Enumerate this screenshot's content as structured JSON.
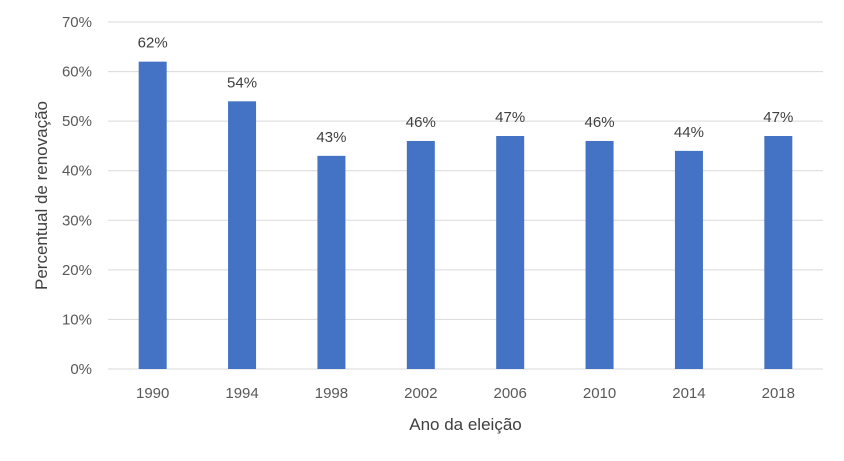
{
  "chart_data": {
    "type": "bar",
    "categories": [
      "1990",
      "1994",
      "1998",
      "2002",
      "2006",
      "2010",
      "2014",
      "2018"
    ],
    "values": [
      62,
      54,
      43,
      46,
      47,
      46,
      44,
      47
    ],
    "data_labels": [
      "62%",
      "54%",
      "43%",
      "46%",
      "47%",
      "46%",
      "44%",
      "47%"
    ],
    "xlabel": "Ano da eleição",
    "ylabel": "Percentual de renovação",
    "ylim": [
      0,
      70
    ],
    "yticks": [
      0,
      10,
      20,
      30,
      40,
      50,
      60,
      70
    ],
    "ytick_labels": [
      "0%",
      "10%",
      "20%",
      "30%",
      "40%",
      "50%",
      "60%",
      "70%"
    ],
    "grid": true,
    "legend": "none",
    "bar_color": "#4472C4"
  }
}
